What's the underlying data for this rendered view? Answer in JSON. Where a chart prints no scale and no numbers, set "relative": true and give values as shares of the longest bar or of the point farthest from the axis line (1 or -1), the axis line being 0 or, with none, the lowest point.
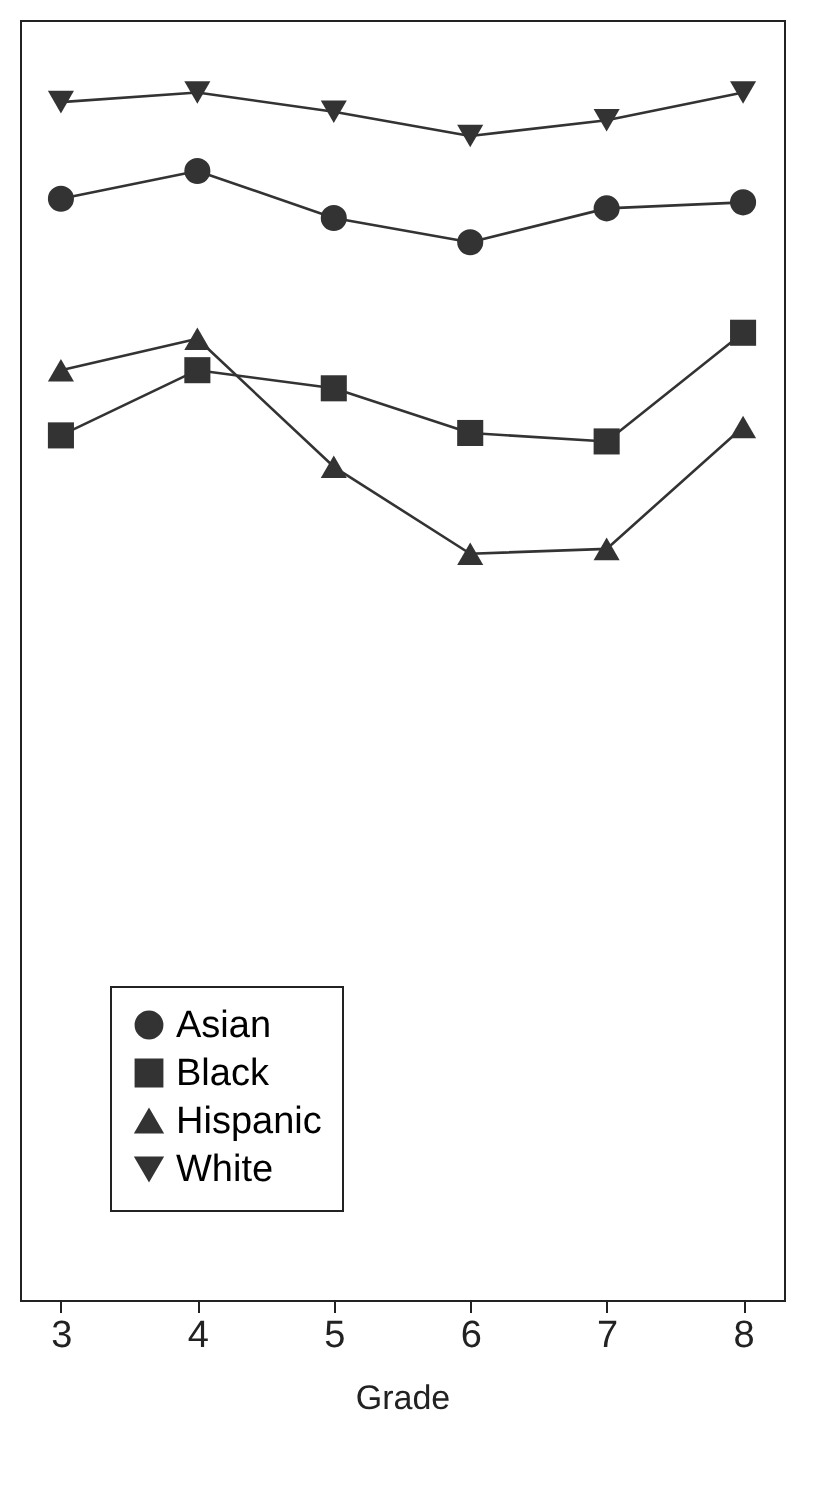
{
  "chart_data": {
    "type": "line",
    "xlabel": "Grade",
    "relative": true,
    "legend": "bottom left",
    "categories": [
      "3",
      "4",
      "5",
      "6",
      "7",
      "8"
    ],
    "series": [
      {
        "name": "Asian",
        "color": "#333333",
        "marker": "circle",
        "values": [
          0.912,
          0.935,
          0.896,
          0.876,
          0.904,
          0.909
        ]
      },
      {
        "name": "Black",
        "color": "#333333",
        "marker": "square",
        "values": [
          0.716,
          0.77,
          0.755,
          0.718,
          0.711,
          0.801
        ]
      },
      {
        "name": "Hispanic",
        "color": "#333333",
        "marker": "triangle",
        "values": [
          0.77,
          0.796,
          0.69,
          0.618,
          0.622,
          0.723
        ]
      },
      {
        "name": "White",
        "color": "#333333",
        "marker": "triangle-down",
        "values": [
          0.992,
          1,
          0.984,
          0.964,
          0.977,
          1
        ]
      }
    ]
  }
}
